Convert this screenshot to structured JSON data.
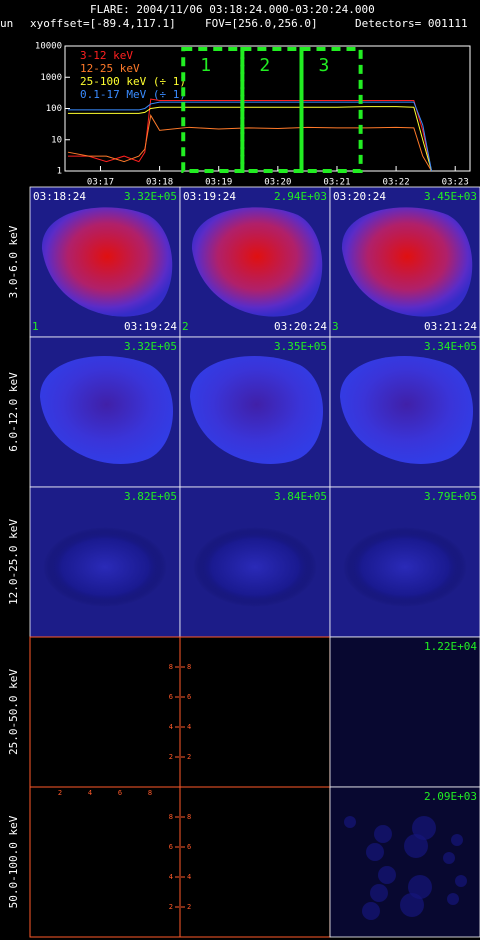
{
  "header": {
    "title": "FLARE: 2004/11/06 03:18:24.000-03:20:24.000",
    "left_fragment": "un",
    "xyoffset": "xyoffset=[-89.4,117.1]",
    "fov": "FOV=[256.0,256.0]",
    "detectors": "Detectors= 001111"
  },
  "chart_data": {
    "type": "line",
    "log_y": true,
    "x": [
      16.45,
      16.8,
      17.1,
      17.4,
      17.65,
      17.75,
      17.85,
      18.0,
      18.5,
      19.0,
      19.5,
      20.0,
      20.5,
      21.0,
      21.5,
      22.0,
      22.3,
      22.45,
      22.6
    ],
    "series": [
      {
        "name": "3-12 keV",
        "color": "#ff2020",
        "values": [
          3,
          3,
          2,
          3,
          2,
          4,
          200,
          180,
          180,
          180,
          180,
          180,
          180,
          180,
          180,
          180,
          180,
          20,
          1
        ]
      },
      {
        "name": "12-25 keV",
        "color": "#ff7a2a",
        "values": [
          4,
          3,
          3,
          2,
          3,
          5,
          60,
          20,
          25,
          22,
          24,
          23,
          25,
          24,
          24,
          25,
          24,
          3,
          1
        ]
      },
      {
        "name": "25-100 keV (÷ 1)",
        "color": "#ffff30",
        "values": [
          70,
          70,
          70,
          70,
          70,
          75,
          100,
          110,
          110,
          110,
          110,
          110,
          110,
          110,
          115,
          115,
          110,
          10,
          1
        ]
      },
      {
        "name": "0.1-17 MeV (÷ 1)",
        "color": "#3a8cff",
        "values": [
          90,
          90,
          90,
          90,
          90,
          100,
          140,
          160,
          160,
          160,
          160,
          160,
          160,
          160,
          160,
          160,
          160,
          30,
          1
        ]
      }
    ],
    "xlim": [
      16.4,
      23.25
    ],
    "xticks": [
      {
        "value": 17,
        "label": "03:17"
      },
      {
        "value": 18,
        "label": "03:18"
      },
      {
        "value": 19,
        "label": "03:19"
      },
      {
        "value": 20,
        "label": "03:20"
      },
      {
        "value": 21,
        "label": "03:21"
      },
      {
        "value": 22,
        "label": "03:22"
      },
      {
        "value": 23,
        "label": "03:23"
      }
    ],
    "ylim": [
      1,
      10000
    ],
    "yticks": [
      1,
      10,
      100,
      1000,
      10000
    ],
    "intervals": [
      {
        "label": "1",
        "start": 18.4,
        "end": 19.4
      },
      {
        "label": "2",
        "start": 19.4,
        "end": 20.4
      },
      {
        "label": "3",
        "start": 20.4,
        "end": 21.4
      }
    ],
    "interval_color": "#22ee22"
  },
  "grid": {
    "axis_ticks": [
      2,
      4,
      6,
      8
    ],
    "rows": [
      {
        "label": "3.0-6.0 keV",
        "panels": [
          {
            "top_left": "03:18:24",
            "top_right": "3.32E+05",
            "bottom_left": "1",
            "bottom_right": "03:19:24"
          },
          {
            "top_left": "03:19:24",
            "top_right": "2.94E+03",
            "bottom_left": "2",
            "bottom_right": "03:20:24"
          },
          {
            "top_left": "03:20:24",
            "top_right": "3.45E+03",
            "bottom_left": "3",
            "bottom_right": "03:21:24"
          }
        ]
      },
      {
        "label": "6.0-12.0 keV",
        "panels": [
          {
            "top_right": "3.32E+05"
          },
          {
            "top_right": "3.35E+05"
          },
          {
            "top_right": "3.34E+05"
          }
        ]
      },
      {
        "label": "12.0-25.0 keV",
        "panels": [
          {
            "top_right": "3.82E+05"
          },
          {
            "top_right": "3.84E+05"
          },
          {
            "top_right": "3.79E+05"
          }
        ]
      },
      {
        "label": "25.0-50.0 keV",
        "panels": [
          null,
          null,
          {
            "top_right": "1.22E+04"
          }
        ]
      },
      {
        "label": "50.0-100.0 keV",
        "panels": [
          null,
          null,
          {
            "top_right": "2.09E+03"
          }
        ]
      }
    ]
  }
}
